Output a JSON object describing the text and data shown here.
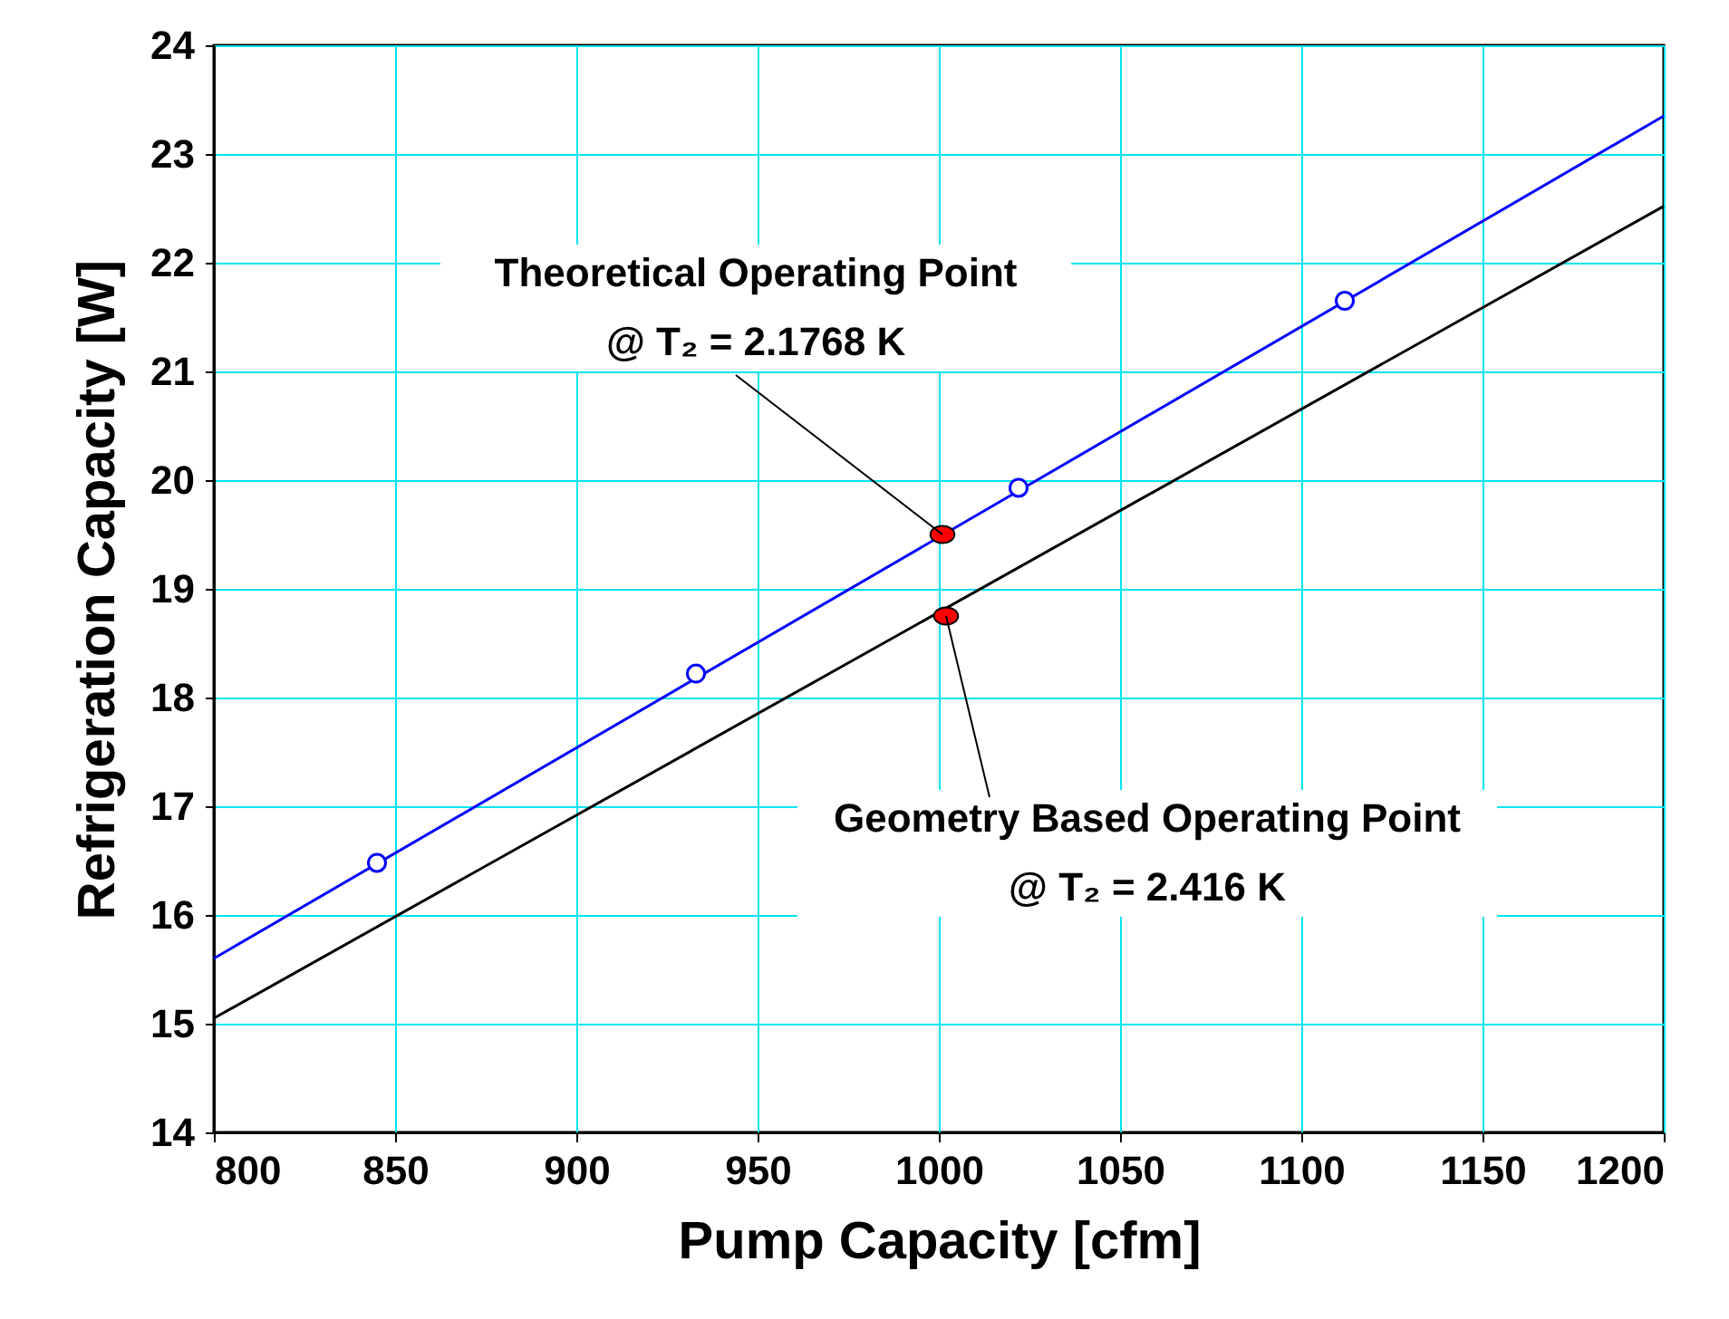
{
  "chart_data": {
    "type": "line",
    "xlabel": "Pump Capacity [cfm]",
    "ylabel": "Refrigeration Capacity [W]",
    "xlim": [
      800,
      1200
    ],
    "xticks": [
      800,
      850,
      900,
      950,
      1000,
      1050,
      1100,
      1150,
      1200
    ],
    "ylim": [
      14,
      24
    ],
    "yticks": [
      14,
      15,
      16,
      17,
      18,
      19,
      20,
      21,
      22,
      23,
      24
    ],
    "grid": true,
    "series": [
      {
        "color": "#0000ff",
        "x": [
          800,
          1200
        ],
        "values": [
          15.6,
          23.35
        ]
      },
      {
        "type": "scatter",
        "color": "#0000ff",
        "marker": "circle",
        "x": [
          845,
          933,
          1022,
          1112
        ],
        "values": [
          16.48,
          18.22,
          19.93,
          21.65
        ]
      },
      {
        "color": "#000000",
        "x": [
          800,
          1200
        ],
        "values": [
          15.05,
          22.52
        ]
      },
      {
        "type": "scatter",
        "color": "#ff0000",
        "x": [
          1001,
          1002
        ],
        "values": [
          19.5,
          18.75
        ]
      }
    ],
    "annotations": [
      {
        "text": "Theoretical Operating Point\n@ T₂ = 2.1768 K",
        "x": 1001,
        "y": 19.5
      },
      {
        "text": "Geometry Based Operating Point\n@ T₂ = 2.416 K",
        "x": 1002,
        "y": 18.75
      }
    ]
  }
}
